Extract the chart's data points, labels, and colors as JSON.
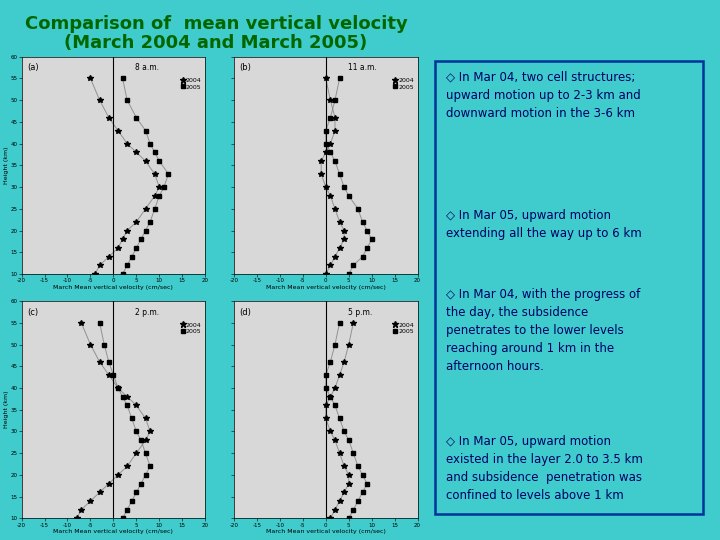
{
  "title_line1": "Comparison of  mean vertical velocity",
  "title_line2": "(March 2004 and March 2005)",
  "title_color": "#006600",
  "bg_color": "#40CCCC",
  "plot_bg": "#D8D8D8",
  "text_box_bg": "#40CCCC",
  "text_box_border": "#003399",
  "subplot_labels": [
    "(a)",
    "(b)",
    "(c)",
    "(d)"
  ],
  "subplot_times": [
    "8 a.m.",
    "11 a.m.",
    "2 p.m.",
    "5 p.m."
  ],
  "xlabel": "March Mean vertical velocity (cm/sec)",
  "xlim": [
    -20,
    20
  ],
  "ylim": [
    10,
    60
  ],
  "data_2004_a": {
    "x": [
      -4,
      -3,
      -1,
      1,
      2,
      3,
      5,
      7,
      9,
      10,
      9,
      7,
      5,
      3,
      1,
      -1,
      -3,
      -5
    ],
    "y": [
      10,
      12,
      14,
      16,
      18,
      20,
      22,
      25,
      28,
      30,
      33,
      36,
      38,
      40,
      43,
      46,
      50,
      55
    ]
  },
  "data_2005_a": {
    "x": [
      2,
      3,
      4,
      5,
      6,
      7,
      8,
      9,
      10,
      11,
      12,
      10,
      9,
      8,
      7,
      5,
      3,
      2
    ],
    "y": [
      10,
      12,
      14,
      16,
      18,
      20,
      22,
      25,
      28,
      30,
      33,
      36,
      38,
      40,
      43,
      46,
      50,
      55
    ]
  },
  "data_2004_b": {
    "x": [
      0,
      1,
      2,
      3,
      4,
      4,
      3,
      2,
      1,
      0,
      -1,
      -1,
      0,
      1,
      2,
      2,
      1,
      0
    ],
    "y": [
      10,
      12,
      14,
      16,
      18,
      20,
      22,
      25,
      28,
      30,
      33,
      36,
      38,
      40,
      43,
      46,
      50,
      55
    ]
  },
  "data_2005_b": {
    "x": [
      5,
      6,
      8,
      9,
      10,
      9,
      8,
      7,
      5,
      4,
      3,
      2,
      1,
      0,
      0,
      1,
      2,
      3
    ],
    "y": [
      10,
      12,
      14,
      16,
      18,
      20,
      22,
      25,
      28,
      30,
      33,
      36,
      38,
      40,
      43,
      46,
      50,
      55
    ]
  },
  "data_2004_c": {
    "x": [
      -8,
      -7,
      -5,
      -3,
      -1,
      1,
      3,
      5,
      7,
      8,
      7,
      5,
      3,
      1,
      -1,
      -3,
      -5,
      -7
    ],
    "y": [
      10,
      12,
      14,
      16,
      18,
      20,
      22,
      25,
      28,
      30,
      33,
      36,
      38,
      40,
      43,
      46,
      50,
      55
    ]
  },
  "data_2005_c": {
    "x": [
      2,
      3,
      4,
      5,
      6,
      7,
      8,
      7,
      6,
      5,
      4,
      3,
      2,
      1,
      0,
      -1,
      -2,
      -3
    ],
    "y": [
      10,
      12,
      14,
      16,
      18,
      20,
      22,
      25,
      28,
      30,
      33,
      36,
      38,
      40,
      43,
      46,
      50,
      55
    ]
  },
  "data_2004_d": {
    "x": [
      1,
      2,
      3,
      4,
      5,
      5,
      4,
      3,
      2,
      1,
      0,
      0,
      1,
      2,
      3,
      4,
      5,
      6
    ],
    "y": [
      10,
      12,
      14,
      16,
      18,
      20,
      22,
      25,
      28,
      30,
      33,
      36,
      38,
      40,
      43,
      46,
      50,
      55
    ]
  },
  "data_2005_d": {
    "x": [
      5,
      6,
      7,
      8,
      9,
      8,
      7,
      6,
      5,
      4,
      3,
      2,
      1,
      0,
      0,
      1,
      2,
      3
    ],
    "y": [
      10,
      12,
      14,
      16,
      18,
      20,
      22,
      25,
      28,
      30,
      33,
      36,
      38,
      40,
      43,
      46,
      50,
      55
    ]
  },
  "text1": "◇ In Mar 04, two cell structures;\nupward motion up to 2-3 km and\ndownward motion in the 3-6 km",
  "text2": "◇ In Mar 05, upward motion\nextending all the way up to 6 km",
  "text3": "◇ In Mar 04, with the progress of\nthe day, the subsidence\npenetrates to the lower levels\nreaching around 1 km in the\nafternoon hours.",
  "text4": "◇ In Mar 05, upward motion\nexisted in the layer 2.0 to 3.5 km\nand subsidence  penetration was\nconfined to levels above 1 km",
  "font_color_text": "#000066",
  "font_size_text": 8.5,
  "font_size_title": 13
}
